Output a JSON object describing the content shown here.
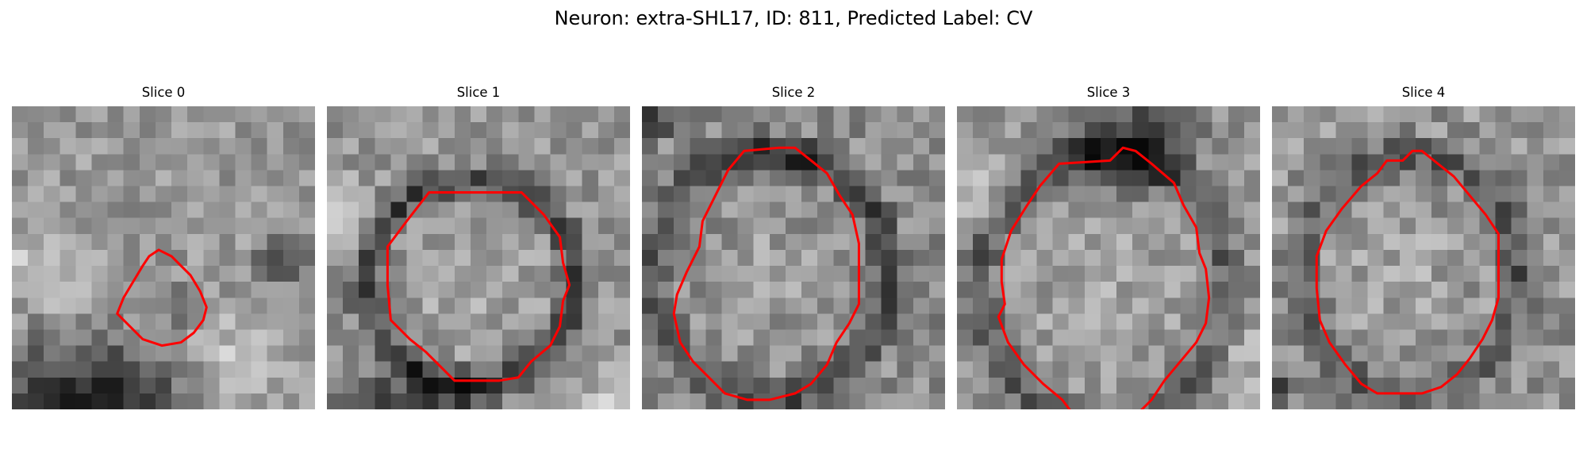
{
  "figure": {
    "title": "Neuron: extra-SHL17, ID: 811, Predicted Label: CV"
  },
  "colors": {
    "contour": "#ff0000",
    "background": "#ffffff"
  },
  "panels": [
    {
      "title": "Slice 0",
      "contour": [
        [
          9.2,
          9.0
        ],
        [
          10.0,
          9.4
        ],
        [
          10.6,
          10.0
        ],
        [
          11.2,
          10.6
        ],
        [
          11.8,
          11.6
        ],
        [
          12.2,
          12.6
        ],
        [
          12.0,
          13.4
        ],
        [
          11.4,
          14.2
        ],
        [
          10.6,
          14.8
        ],
        [
          9.4,
          15.0
        ],
        [
          8.2,
          14.6
        ],
        [
          7.4,
          13.8
        ],
        [
          6.6,
          13.0
        ],
        [
          7.0,
          12.0
        ],
        [
          7.6,
          11.0
        ],
        [
          8.2,
          10.0
        ],
        [
          8.6,
          9.4
        ]
      ],
      "image": {
        "base": 152,
        "noise": 32,
        "seed": 11,
        "features": [
          {
            "cx": 4.5,
            "cy": 19.5,
            "rx": 8.0,
            "ry": 5.5,
            "level": -115
          },
          {
            "cx": 10.0,
            "cy": 12.5,
            "rx": 2.2,
            "ry": 2.0,
            "level": -30
          },
          {
            "cx": 17.0,
            "cy": 9.5,
            "rx": 2.0,
            "ry": 2.0,
            "level": -55
          },
          {
            "cx": 2.0,
            "cy": 10.0,
            "rx": 3.5,
            "ry": 2.5,
            "level": 45
          },
          {
            "cx": 14.0,
            "cy": 16.0,
            "rx": 4.0,
            "ry": 3.0,
            "level": 40
          }
        ]
      }
    },
    {
      "title": "Slice 1",
      "contour": [
        [
          6.4,
          5.4
        ],
        [
          12.2,
          5.4
        ],
        [
          13.6,
          6.8
        ],
        [
          14.6,
          8.2
        ],
        [
          14.8,
          9.8
        ],
        [
          15.2,
          11.2
        ],
        [
          14.8,
          12.2
        ],
        [
          14.6,
          13.8
        ],
        [
          14.0,
          15.0
        ],
        [
          12.8,
          16.0
        ],
        [
          12.0,
          17.0
        ],
        [
          10.8,
          17.2
        ],
        [
          9.6,
          17.2
        ],
        [
          8.0,
          17.2
        ],
        [
          7.2,
          16.4
        ],
        [
          6.2,
          15.4
        ],
        [
          5.2,
          14.6
        ],
        [
          4.0,
          13.4
        ],
        [
          3.8,
          11.2
        ],
        [
          3.8,
          8.8
        ],
        [
          5.0,
          7.2
        ]
      ],
      "image": {
        "base": 150,
        "noise": 34,
        "seed": 23,
        "features": [
          {
            "cx": 9.0,
            "cy": 11.0,
            "rx": 6.6,
            "ry": 6.4,
            "ring": 1.5,
            "level": -90
          },
          {
            "cx": 9.0,
            "cy": 11.0,
            "rx": 4.2,
            "ry": 4.2,
            "level": 20
          },
          {
            "cx": 5.0,
            "cy": 20.0,
            "rx": 6.0,
            "ry": 3.5,
            "level": -105
          },
          {
            "cx": 17.5,
            "cy": 19.0,
            "rx": 3.5,
            "ry": 2.5,
            "level": 40
          },
          {
            "cx": 1.5,
            "cy": 7.0,
            "rx": 2.0,
            "ry": 2.5,
            "level": 40
          }
        ]
      }
    },
    {
      "title": "Slice 2",
      "contour": [
        [
          6.4,
          2.8
        ],
        [
          8.6,
          2.6
        ],
        [
          9.6,
          2.6
        ],
        [
          10.6,
          3.4
        ],
        [
          11.6,
          4.2
        ],
        [
          12.4,
          5.6
        ],
        [
          13.2,
          6.8
        ],
        [
          13.6,
          8.6
        ],
        [
          13.6,
          10.4
        ],
        [
          13.6,
          12.4
        ],
        [
          13.0,
          13.6
        ],
        [
          12.2,
          14.8
        ],
        [
          11.6,
          16.2
        ],
        [
          10.6,
          17.4
        ],
        [
          9.6,
          18.0
        ],
        [
          8.0,
          18.4
        ],
        [
          6.6,
          18.4
        ],
        [
          5.2,
          18.0
        ],
        [
          4.2,
          17.0
        ],
        [
          3.2,
          16.0
        ],
        [
          2.4,
          14.8
        ],
        [
          2.0,
          13.0
        ],
        [
          2.2,
          11.8
        ],
        [
          2.8,
          10.4
        ],
        [
          3.6,
          8.8
        ],
        [
          3.8,
          7.2
        ],
        [
          4.6,
          5.6
        ],
        [
          5.4,
          4.0
        ]
      ],
      "image": {
        "base": 140,
        "noise": 36,
        "seed": 37,
        "features": [
          {
            "cx": 8.0,
            "cy": 10.5,
            "rx": 7.4,
            "ry": 7.8,
            "ring": 1.6,
            "level": -75
          },
          {
            "cx": 8.0,
            "cy": 10.5,
            "rx": 5.0,
            "ry": 5.0,
            "level": 18
          },
          {
            "cx": 9.5,
            "cy": 3.5,
            "rx": 3.0,
            "ry": 1.5,
            "level": -45
          },
          {
            "cx": 0.5,
            "cy": 1.0,
            "rx": 1.5,
            "ry": 1.5,
            "level": -80
          }
        ]
      }
    },
    {
      "title": "Slice 3",
      "contour": [
        [
          6.4,
          3.6
        ],
        [
          9.6,
          3.4
        ],
        [
          10.4,
          2.6
        ],
        [
          11.2,
          2.8
        ],
        [
          12.2,
          3.6
        ],
        [
          13.6,
          4.8
        ],
        [
          14.2,
          6.2
        ],
        [
          15.0,
          7.6
        ],
        [
          15.2,
          9.2
        ],
        [
          15.6,
          10.2
        ],
        [
          15.8,
          12.0
        ],
        [
          15.6,
          13.6
        ],
        [
          15.0,
          14.8
        ],
        [
          14.0,
          16.0
        ],
        [
          13.0,
          17.2
        ],
        [
          12.2,
          18.4
        ],
        [
          11.4,
          19.2
        ],
        [
          10.8,
          19.6
        ],
        [
          9.0,
          19.6
        ],
        [
          7.2,
          19.2
        ],
        [
          6.6,
          18.4
        ],
        [
          5.4,
          17.4
        ],
        [
          4.2,
          16.2
        ],
        [
          3.2,
          14.8
        ],
        [
          2.6,
          13.2
        ],
        [
          3.0,
          12.4
        ],
        [
          2.8,
          11.0
        ],
        [
          2.8,
          9.6
        ],
        [
          3.4,
          7.8
        ],
        [
          4.4,
          6.2
        ],
        [
          5.2,
          5.0
        ]
      ],
      "image": {
        "base": 150,
        "noise": 34,
        "seed": 53,
        "features": [
          {
            "cx": 9.2,
            "cy": 11.4,
            "rx": 7.8,
            "ry": 8.2,
            "ring": 1.7,
            "level": -70
          },
          {
            "cx": 9.2,
            "cy": 11.4,
            "rx": 5.4,
            "ry": 5.6,
            "level": 15
          },
          {
            "cx": 11.0,
            "cy": 2.5,
            "rx": 4.5,
            "ry": 3.0,
            "level": -100
          },
          {
            "cx": 1.5,
            "cy": 5.0,
            "rx": 2.0,
            "ry": 3.0,
            "level": 45
          },
          {
            "cx": 17.5,
            "cy": 16.0,
            "rx": 2.0,
            "ry": 3.0,
            "level": 40
          }
        ]
      }
    },
    {
      "title": "Slice 4",
      "contour": [
        [
          7.2,
          3.4
        ],
        [
          8.2,
          3.4
        ],
        [
          8.8,
          2.8
        ],
        [
          9.4,
          2.8
        ],
        [
          10.4,
          3.6
        ],
        [
          11.4,
          4.4
        ],
        [
          12.4,
          5.6
        ],
        [
          13.4,
          6.8
        ],
        [
          14.2,
          8.0
        ],
        [
          14.2,
          10.0
        ],
        [
          14.2,
          12.0
        ],
        [
          13.8,
          13.4
        ],
        [
          13.2,
          14.6
        ],
        [
          12.4,
          15.8
        ],
        [
          11.6,
          16.8
        ],
        [
          10.6,
          17.6
        ],
        [
          9.4,
          18.0
        ],
        [
          8.0,
          18.0
        ],
        [
          6.6,
          18.0
        ],
        [
          5.6,
          17.4
        ],
        [
          4.6,
          16.2
        ],
        [
          3.6,
          14.8
        ],
        [
          3.0,
          13.4
        ],
        [
          2.8,
          11.4
        ],
        [
          2.8,
          9.4
        ],
        [
          3.4,
          7.8
        ],
        [
          4.4,
          6.4
        ],
        [
          5.6,
          5.0
        ],
        [
          6.6,
          4.2
        ]
      ],
      "image": {
        "base": 148,
        "noise": 38,
        "seed": 71,
        "features": [
          {
            "cx": 8.6,
            "cy": 10.6,
            "rx": 6.8,
            "ry": 7.6,
            "ring": 1.6,
            "level": -65
          },
          {
            "cx": 8.6,
            "cy": 10.6,
            "rx": 4.6,
            "ry": 5.0,
            "level": 18
          },
          {
            "cx": 0.5,
            "cy": 17.5,
            "rx": 1.0,
            "ry": 1.0,
            "level": -90
          }
        ]
      }
    }
  ]
}
